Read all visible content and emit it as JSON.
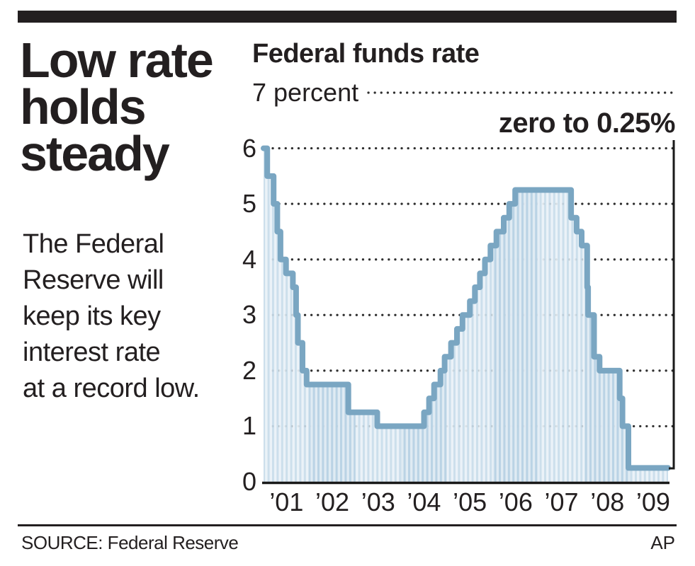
{
  "page": {
    "background": "#ffffff",
    "rule_color": "#231f20"
  },
  "header": {
    "headline": "Low rate\nholds\nsteady",
    "description": "The Federal\nReserve will\nkeep its key\ninterest rate\nat a record low."
  },
  "footer": {
    "source": "SOURCE: Federal Reserve",
    "credit": "AP"
  },
  "chart_data": {
    "type": "area",
    "title": "Federal funds rate",
    "y_top_label": "7 percent",
    "annotation": "zero to 0.25%",
    "xlabel": "",
    "ylabel": "percent",
    "ylim": [
      0,
      7
    ],
    "x_start": 2001,
    "x_end": 2009.83,
    "grid": "dotted horizontal gridlines at 1 through 7, solid baseline at 0, right-side axis spine",
    "legend_position": "none",
    "x_tick_labels": [
      "’01",
      "’02",
      "’03",
      "’04",
      "’05",
      "’06",
      "’07",
      "’08",
      "’09"
    ],
    "y_tick_values": [
      0,
      1,
      2,
      3,
      4,
      5,
      6
    ],
    "series": [
      {
        "name": "Federal funds target rate",
        "steps": [
          [
            2001.0,
            6.0
          ],
          [
            2001.08,
            5.5
          ],
          [
            2001.22,
            5.0
          ],
          [
            2001.3,
            4.5
          ],
          [
            2001.37,
            4.0
          ],
          [
            2001.49,
            3.75
          ],
          [
            2001.64,
            3.5
          ],
          [
            2001.71,
            3.0
          ],
          [
            2001.75,
            2.5
          ],
          [
            2001.85,
            2.0
          ],
          [
            2001.94,
            1.75
          ],
          [
            2002.85,
            1.25
          ],
          [
            2003.48,
            1.0
          ],
          [
            2004.5,
            1.25
          ],
          [
            2004.61,
            1.5
          ],
          [
            2004.72,
            1.75
          ],
          [
            2004.86,
            2.0
          ],
          [
            2004.95,
            2.25
          ],
          [
            2005.09,
            2.5
          ],
          [
            2005.22,
            2.75
          ],
          [
            2005.34,
            3.0
          ],
          [
            2005.5,
            3.25
          ],
          [
            2005.61,
            3.5
          ],
          [
            2005.72,
            3.75
          ],
          [
            2005.83,
            4.0
          ],
          [
            2005.95,
            4.25
          ],
          [
            2006.08,
            4.5
          ],
          [
            2006.24,
            4.75
          ],
          [
            2006.36,
            5.0
          ],
          [
            2006.49,
            5.25
          ],
          [
            2007.71,
            4.75
          ],
          [
            2007.83,
            4.5
          ],
          [
            2007.94,
            4.25
          ],
          [
            2008.06,
            3.5
          ],
          [
            2008.08,
            3.0
          ],
          [
            2008.21,
            2.25
          ],
          [
            2008.33,
            2.0
          ],
          [
            2008.77,
            1.5
          ],
          [
            2008.83,
            1.0
          ],
          [
            2008.96,
            0.25
          ]
        ]
      }
    ],
    "colors": {
      "line": "#7aa6c2",
      "stripe_dark": "#c8dcea",
      "stripe_light": "#e9f1f7",
      "stripe_dark_alt": "#b8d2e4",
      "stripe_light_alt": "#dfeaf3",
      "grid_dot": "#2e2e2e",
      "axis": "#1a1a1a",
      "text": "#231f20"
    }
  }
}
